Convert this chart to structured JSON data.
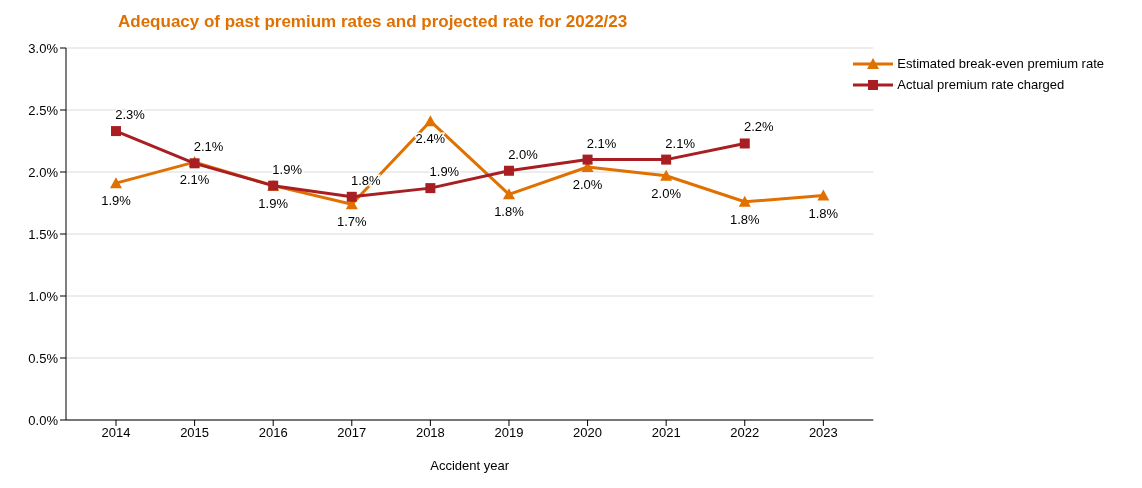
{
  "chart_data": {
    "type": "line",
    "title": "Adequacy of past premium rates and projected rate for 2022/23",
    "xlabel": "Accident year",
    "categories": [
      "2014",
      "2015",
      "2016",
      "2017",
      "2018",
      "2019",
      "2020",
      "2021",
      "2022",
      "2023"
    ],
    "series": [
      {
        "name": "Estimated break-even premium rate",
        "color": "#e07000",
        "marker": "triangle",
        "values": [
          1.91,
          2.08,
          1.89,
          1.74,
          2.41,
          1.82,
          2.04,
          1.97,
          1.76,
          1.81
        ],
        "value_labels": [
          "1.9%",
          "2.1%",
          "1.9%",
          "1.7%",
          "2.4%",
          "1.8%",
          "2.0%",
          "2.0%",
          "1.8%",
          "1.8%"
        ]
      },
      {
        "name": "Actual premium rate charged",
        "color": "#a81e22",
        "marker": "square",
        "values": [
          2.33,
          2.07,
          1.89,
          1.8,
          1.87,
          2.01,
          2.1,
          2.1,
          2.23,
          null
        ],
        "value_labels": [
          "2.3%",
          "2.1%",
          "1.9%",
          "1.8%",
          "1.9%",
          "2.0%",
          "2.1%",
          "2.1%",
          "2.2%",
          null
        ]
      }
    ],
    "ylim": [
      0,
      3
    ],
    "yticks": [
      {
        "value": 0,
        "label": "0.0%"
      },
      {
        "value": 0.5,
        "label": "0.5%"
      },
      {
        "value": 1,
        "label": "1.0%"
      },
      {
        "value": 1.5,
        "label": "1.5%"
      },
      {
        "value": 2,
        "label": "2.0%"
      },
      {
        "value": 2.5,
        "label": "2.5%"
      },
      {
        "value": 3,
        "label": "3.0%"
      }
    ],
    "grid": "y",
    "legend": "top right",
    "line_style": "solid"
  }
}
